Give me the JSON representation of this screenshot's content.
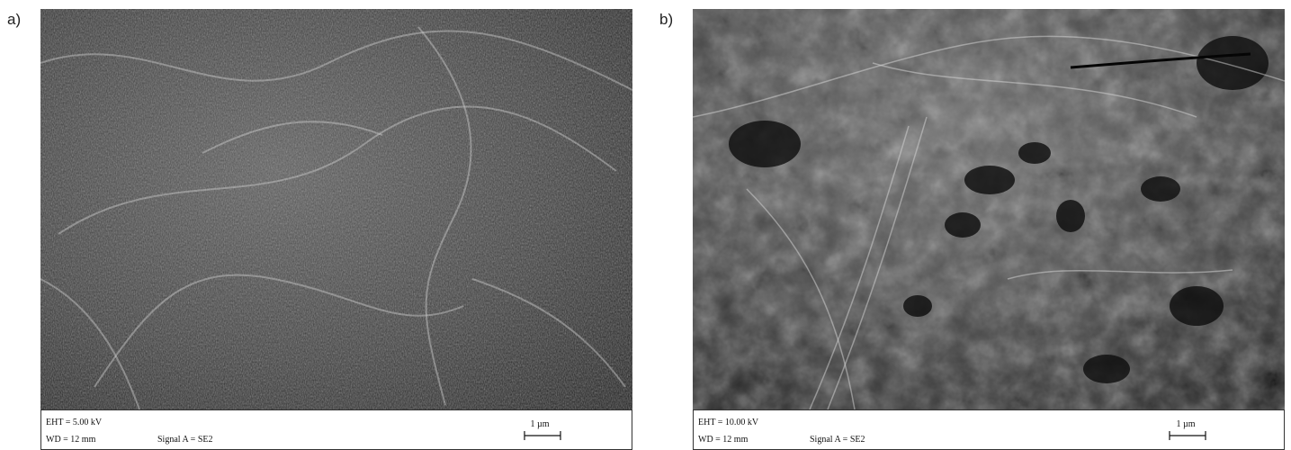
{
  "panels": [
    {
      "label": "a)",
      "info": {
        "eht": "EHT = 5.00 kV",
        "wd": "WD = 12 mm",
        "signal": "Signal A = SE2",
        "scale": "1 µm"
      }
    },
    {
      "label": "b)",
      "info": {
        "eht": "EHT = 10.00 kV",
        "wd": "WD = 12 mm",
        "signal": "Signal A = SE2",
        "scale": "1 µm"
      }
    }
  ]
}
